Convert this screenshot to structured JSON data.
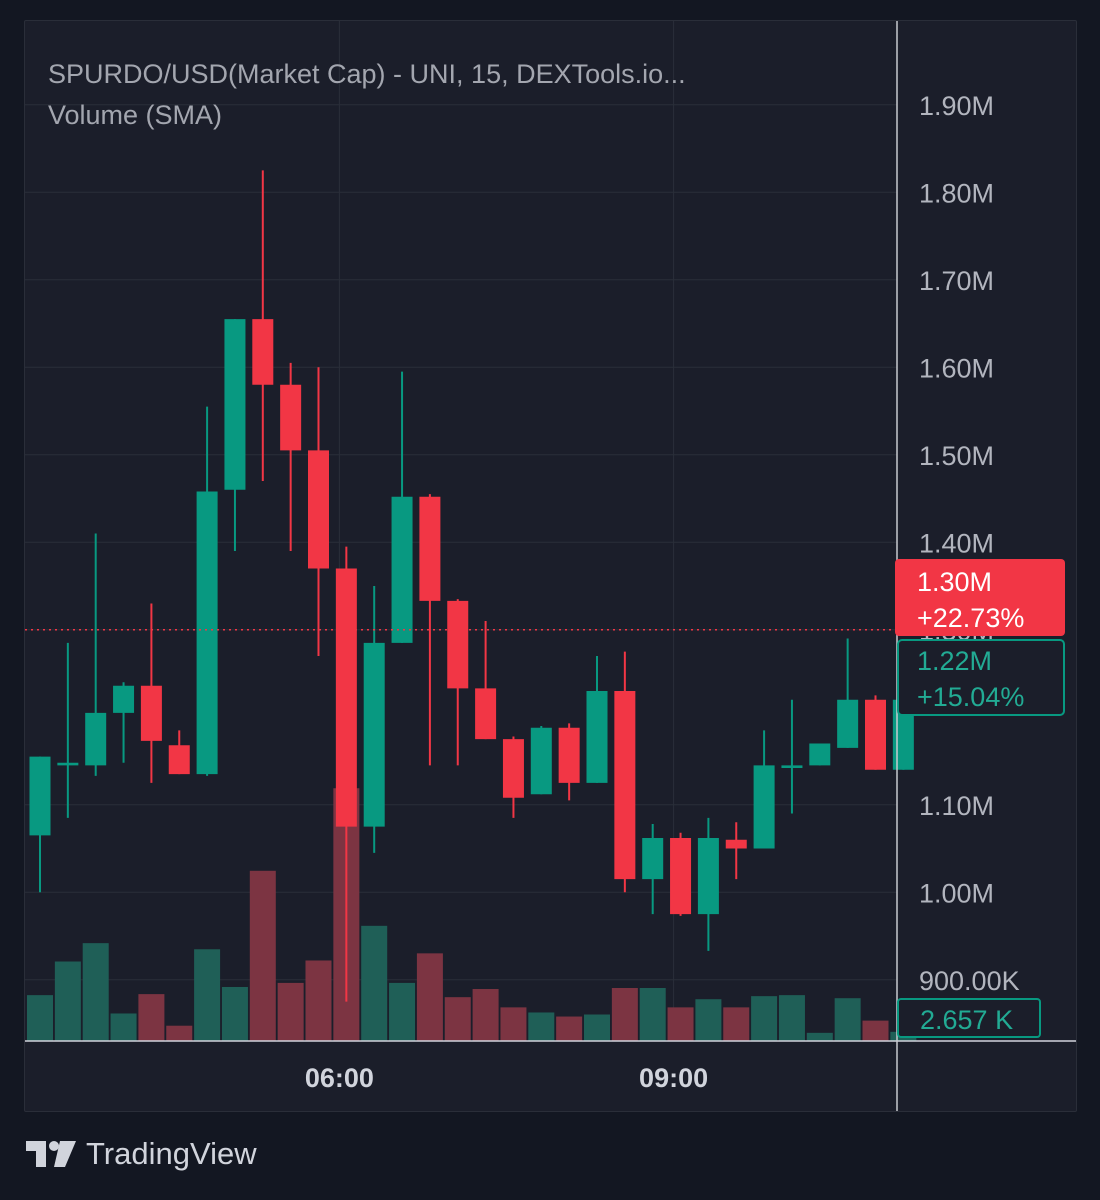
{
  "legend": {
    "title": "SPURDO/USD(Market Cap)  - UNI, 15, DEXTools.io...",
    "volume_label": "Volume (SMA)"
  },
  "colors": {
    "up": "#089981",
    "down": "#f23645",
    "volume_up": "#1f5f57",
    "volume_down": "#7c3442",
    "background": "#1b1e2a",
    "grid": "#2a2e39",
    "axis_text": "#b2b5be"
  },
  "footer": {
    "brand": "TradingView"
  },
  "chart_data": {
    "type": "candlestick",
    "title": "SPURDO/USD(Market Cap)  - UNI, 15, DEXTools.io...",
    "interval": "15",
    "y_axis": {
      "min": 0.83,
      "max": 1.95,
      "unit": "M",
      "ticks": [
        1.9,
        1.8,
        1.7,
        1.6,
        1.5,
        1.4,
        1.3,
        1.1,
        1.0,
        0.9
      ],
      "tick_labels": [
        "1.90M",
        "1.80M",
        "1.70M",
        "1.60M",
        "1.50M",
        "1.40M",
        "1.30M",
        "1.10M",
        "1.00M",
        "900.00K"
      ]
    },
    "x_axis": {
      "ticks": [
        {
          "label": "06:00",
          "index": 10.75
        },
        {
          "label": "09:00",
          "index": 22.75
        }
      ]
    },
    "candles": [
      {
        "o": 1.065,
        "h": 1.155,
        "l": 1.0,
        "c": 1.155
      },
      {
        "o": 1.145,
        "h": 1.285,
        "l": 1.085,
        "c": 1.148
      },
      {
        "o": 1.145,
        "h": 1.41,
        "l": 1.133,
        "c": 1.205
      },
      {
        "o": 1.205,
        "h": 1.24,
        "l": 1.148,
        "c": 1.236
      },
      {
        "o": 1.236,
        "h": 1.33,
        "l": 1.125,
        "c": 1.173
      },
      {
        "o": 1.168,
        "h": 1.185,
        "l": 1.135,
        "c": 1.135
      },
      {
        "o": 1.135,
        "h": 1.555,
        "l": 1.133,
        "c": 1.458
      },
      {
        "o": 1.46,
        "h": 1.655,
        "l": 1.39,
        "c": 1.655
      },
      {
        "o": 1.655,
        "h": 1.825,
        "l": 1.47,
        "c": 1.58
      },
      {
        "o": 1.58,
        "h": 1.605,
        "l": 1.39,
        "c": 1.505
      },
      {
        "o": 1.505,
        "h": 1.6,
        "l": 1.27,
        "c": 1.37
      },
      {
        "o": 1.37,
        "h": 1.395,
        "l": 0.875,
        "c": 1.075
      },
      {
        "o": 1.075,
        "h": 1.35,
        "l": 1.045,
        "c": 1.285
      },
      {
        "o": 1.285,
        "h": 1.595,
        "l": 1.285,
        "c": 1.452
      },
      {
        "o": 1.452,
        "h": 1.455,
        "l": 1.145,
        "c": 1.333
      },
      {
        "o": 1.333,
        "h": 1.335,
        "l": 1.145,
        "c": 1.233
      },
      {
        "o": 1.233,
        "h": 1.31,
        "l": 1.175,
        "c": 1.175
      },
      {
        "o": 1.175,
        "h": 1.178,
        "l": 1.085,
        "c": 1.108
      },
      {
        "o": 1.112,
        "h": 1.19,
        "l": 1.112,
        "c": 1.188
      },
      {
        "o": 1.188,
        "h": 1.193,
        "l": 1.105,
        "c": 1.125
      },
      {
        "o": 1.125,
        "h": 1.27,
        "l": 1.125,
        "c": 1.23
      },
      {
        "o": 1.23,
        "h": 1.275,
        "l": 1.0,
        "c": 1.015
      },
      {
        "o": 1.015,
        "h": 1.078,
        "l": 0.975,
        "c": 1.062
      },
      {
        "o": 1.062,
        "h": 1.068,
        "l": 0.973,
        "c": 0.975
      },
      {
        "o": 0.975,
        "h": 1.085,
        "l": 0.933,
        "c": 1.062
      },
      {
        "o": 1.06,
        "h": 1.08,
        "l": 1.015,
        "c": 1.05
      },
      {
        "o": 1.05,
        "h": 1.185,
        "l": 1.05,
        "c": 1.145
      },
      {
        "o": 1.142,
        "h": 1.22,
        "l": 1.09,
        "c": 1.145
      },
      {
        "o": 1.145,
        "h": 1.17,
        "l": 1.145,
        "c": 1.17
      },
      {
        "o": 1.165,
        "h": 1.29,
        "l": 1.165,
        "c": 1.22
      },
      {
        "o": 1.22,
        "h": 1.225,
        "l": 1.14,
        "c": 1.14
      },
      {
        "o": 1.14,
        "h": 1.22,
        "l": 1.14,
        "c": 1.22
      }
    ],
    "volume": [
      0.45,
      0.78,
      0.96,
      0.27,
      0.46,
      0.15,
      0.9,
      0.53,
      1.67,
      0.57,
      0.79,
      2.48,
      1.13,
      0.57,
      0.86,
      0.43,
      0.51,
      0.33,
      0.28,
      0.24,
      0.26,
      0.52,
      0.52,
      0.33,
      0.41,
      0.33,
      0.44,
      0.45,
      0.08,
      0.42,
      0.2,
      0.09
    ],
    "price_line": {
      "value": 1.3,
      "label": "1.30M",
      "change": "+22.73%"
    },
    "secondary_label": {
      "value": 1.22,
      "label": "1.22M",
      "change": "+15.04%"
    },
    "volume_label": {
      "label": "2.657 K"
    }
  }
}
